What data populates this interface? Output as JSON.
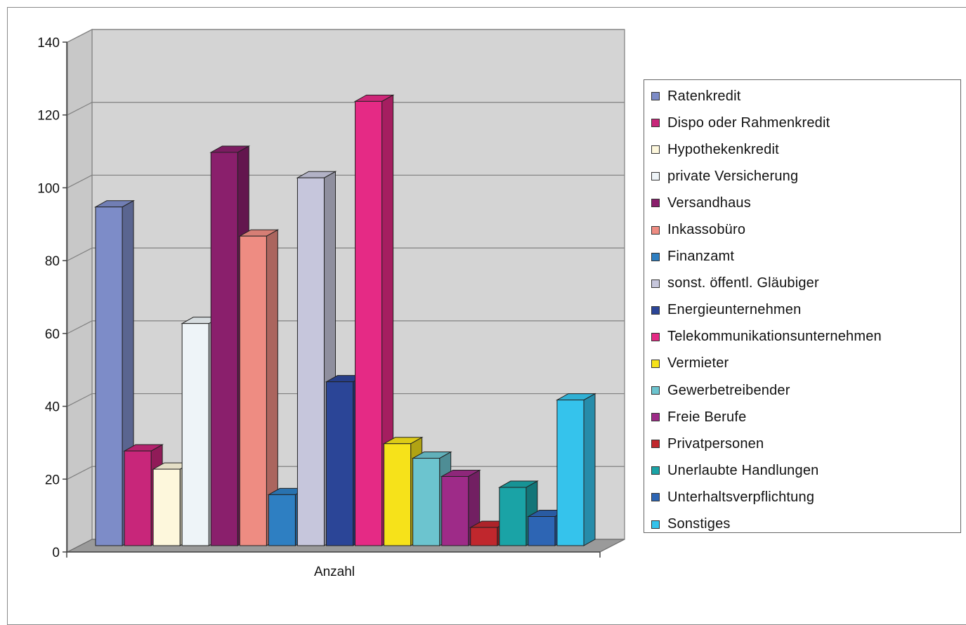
{
  "chart_data": {
    "type": "bar",
    "title": "",
    "xlabel": "",
    "ylabel": "",
    "categories": [
      "Anzahl"
    ],
    "ylim": [
      0,
      140
    ],
    "yticks": [
      0,
      20,
      40,
      60,
      80,
      100,
      120,
      140
    ],
    "grid": true,
    "legend_position": "right",
    "series": [
      {
        "name": "Ratenkredit",
        "value": 93,
        "color": "#7d8cc8"
      },
      {
        "name": "Dispo oder Rahmenkredit",
        "value": 26,
        "color": "#c8267a"
      },
      {
        "name": "Hypothekenkredit",
        "value": 21,
        "color": "#fdf7dc"
      },
      {
        "name": "private Versicherung",
        "value": 61,
        "color": "#eef4f8"
      },
      {
        "name": "Versandhaus",
        "value": 108,
        "color": "#8a1f6c"
      },
      {
        "name": "Inkassobüro",
        "value": 85,
        "color": "#ee8c82"
      },
      {
        "name": "Finanzamt",
        "value": 14,
        "color": "#2e7fc2"
      },
      {
        "name": "sonst. öffentl. Gläubiger",
        "value": 101,
        "color": "#c6c6dc"
      },
      {
        "name": "Energieunternehmen",
        "value": 45,
        "color": "#2b4597"
      },
      {
        "name": "Telekommunikationsunternehmen",
        "value": 122,
        "color": "#e52a85"
      },
      {
        "name": "Vermieter",
        "value": 28,
        "color": "#f6e21a"
      },
      {
        "name": "Gewerbetreibender",
        "value": 24,
        "color": "#6cc4cf"
      },
      {
        "name": "Freie Berufe",
        "value": 19,
        "color": "#9e2b88"
      },
      {
        "name": "Privatpersonen",
        "value": 5,
        "color": "#c0272d"
      },
      {
        "name": "Unerlaubte Handlungen",
        "value": 16,
        "color": "#1aa3a6"
      },
      {
        "name": "Unterhaltsverpflichtung",
        "value": 8,
        "color": "#2d65b4"
      },
      {
        "name": "Sonstiges",
        "value": 40,
        "color": "#35c3ec"
      }
    ]
  }
}
